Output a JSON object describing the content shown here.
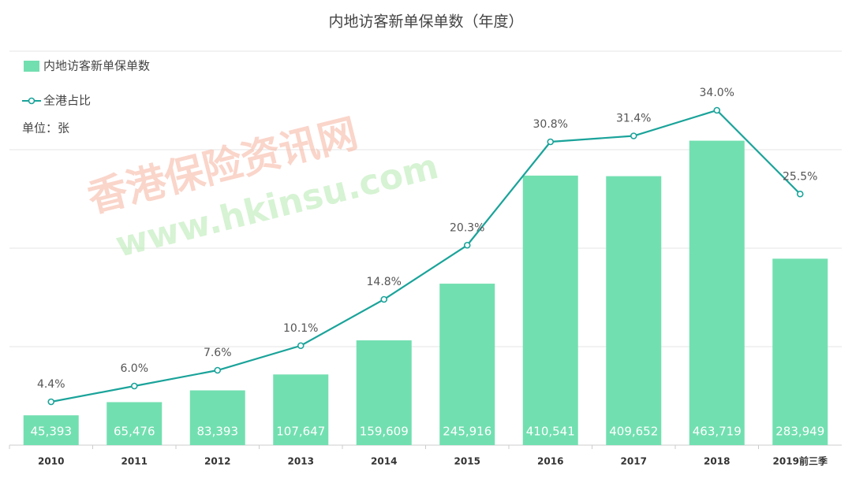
{
  "chart_data": {
    "type": "bar-line",
    "title": "内地访客新单保单数（年度）",
    "unit_note": "单位：张",
    "watermark": [
      "香港保险资讯网",
      "www.hkinsu.com"
    ],
    "categories": [
      "2010",
      "2011",
      "2012",
      "2013",
      "2014",
      "2015",
      "2016",
      "2017",
      "2018",
      "2019前三季"
    ],
    "series": [
      {
        "name": "内地访客新单保单数",
        "type": "bar",
        "color": "#72dfb0",
        "values": [
          45393,
          65476,
          83393,
          107647,
          159609,
          245916,
          410541,
          409652,
          463719,
          283949
        ],
        "value_labels": [
          "45,393",
          "65,476",
          "83,393",
          "107,647",
          "159,609",
          "245,916",
          "410,541",
          "409,652",
          "463,719",
          "283,949"
        ]
      },
      {
        "name": "全港占比",
        "type": "line",
        "axis": "y2",
        "color": "#1aa39a",
        "values": [
          4.4,
          6.0,
          7.6,
          10.1,
          14.8,
          20.3,
          30.8,
          31.4,
          34.0,
          25.5
        ],
        "value_labels": [
          "4.4%",
          "6.0%",
          "7.6%",
          "10.1%",
          "14.8%",
          "20.3%",
          "30.8%",
          "31.4%",
          "34.0%",
          "25.5%"
        ]
      }
    ],
    "ylim": [
      0,
      600000
    ],
    "y2lim": [
      0,
      40
    ],
    "grid": true,
    "legend": "top-left"
  }
}
